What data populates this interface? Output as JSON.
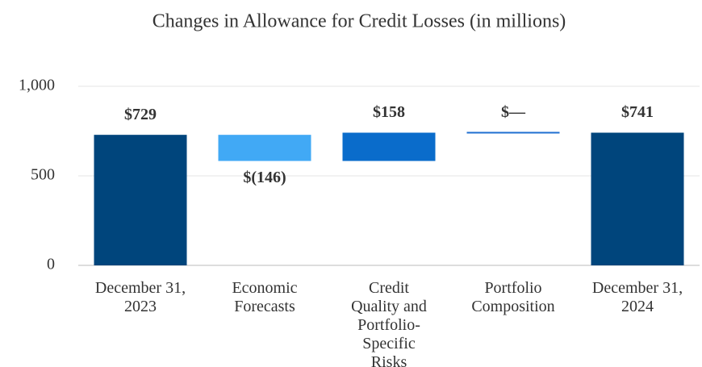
{
  "chart_data": {
    "type": "waterfall",
    "title": "Changes in Allowance for Credit Losses (in millions)",
    "categories": [
      "December 31, 2023",
      "Economic Forecasts",
      "Credit Quality and Portfolio-Specific Risks",
      "Portfolio Composition",
      "December 31, 2024"
    ],
    "values": [
      729,
      -146,
      158,
      0,
      741
    ],
    "value_labels": [
      "$729",
      "$(146)",
      "$158",
      "$—",
      "$741"
    ],
    "colors": [
      "#00457c",
      "#41a9f5",
      "#0a6ccb",
      "#1f6fd1",
      "#00457c"
    ],
    "ylim": [
      0,
      1000
    ],
    "yticks": [
      0,
      500,
      {
        "value": 1000,
        "label": "1,000"
      }
    ],
    "grid": true
  }
}
